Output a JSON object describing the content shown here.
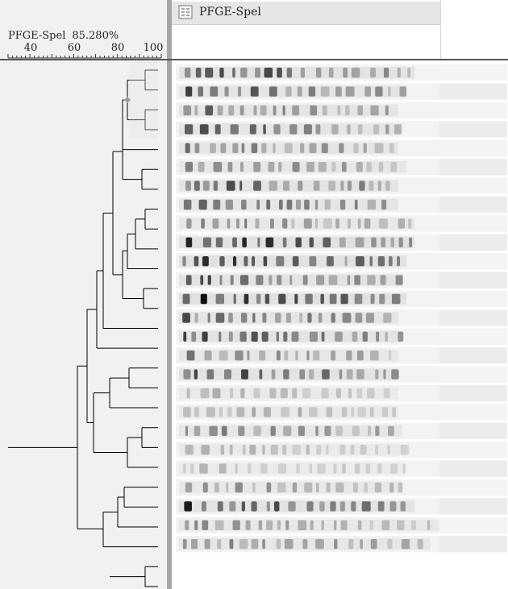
{
  "experiment": {
    "name": "PFGE-Spel",
    "cutoff": "85.280%"
  },
  "scale": {
    "ticks": [
      40,
      60,
      80,
      100
    ],
    "min": 30,
    "max": 100
  },
  "column_header": {
    "label": "PFGE-Spel",
    "icon": "lanes-icon"
  },
  "dendrogram": {
    "leaves": 26,
    "node_marker_color": "#999999",
    "line_color": "#000000"
  },
  "gel": {
    "lane_count": 26,
    "band_color": "#111111"
  }
}
